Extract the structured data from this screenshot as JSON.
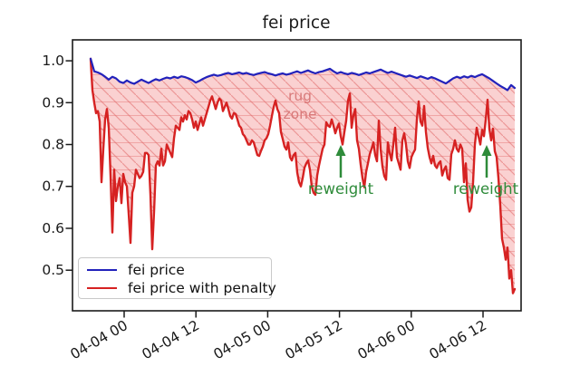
{
  "title": "fei price",
  "axes": {
    "y_ticks": [
      "1.0",
      "0.9",
      "0.8",
      "0.7",
      "0.6",
      "0.5"
    ],
    "x_ticks": [
      "04-04 00",
      "04-04 12",
      "04-05 00",
      "04-05 12",
      "04-06 00",
      "04-06 12"
    ]
  },
  "legend": {
    "items": [
      {
        "label": "fei price",
        "color": "#2222bb"
      },
      {
        "label": "fei price with penalty",
        "color": "#d62222"
      }
    ]
  },
  "annotations": {
    "rug_zone": {
      "line1": "rug",
      "line2": "zone",
      "color": "#d87a7a"
    },
    "reweights": [
      {
        "label": "reweight",
        "color": "#2e8b3a"
      },
      {
        "label": "reweight",
        "color": "#2e8b3a"
      }
    ]
  },
  "colors": {
    "blue_line": "#2222bb",
    "red_line": "#d62222",
    "fill": "#f08080",
    "hatch": "#e06666",
    "axis": "#1a1a1a",
    "green_annotation": "#2e8b3a"
  },
  "chart_data": {
    "type": "line",
    "title": "fei price",
    "x_axis": {
      "unit": "time (MM-DD HH), hours relative to 04-04 00:00",
      "tick_labels": [
        "04-04 00",
        "04-04 12",
        "04-05 00",
        "04-05 12",
        "04-06 00",
        "04-06 12"
      ],
      "tick_hours": [
        0,
        12,
        24,
        36,
        48,
        60
      ],
      "xlim_hours": [
        -8.636,
        66.364
      ]
    },
    "y_axis": {
      "tick_labels": [
        "1.0",
        "0.9",
        "0.8",
        "0.7",
        "0.6",
        "0.5"
      ],
      "tick_values": [
        1.0,
        0.9,
        0.8,
        0.7,
        0.6,
        0.5
      ],
      "ylim": [
        0.403,
        1.05
      ]
    },
    "legend": {
      "position": "lower left",
      "entries": [
        "fei price",
        "fei price with penalty"
      ]
    },
    "fill_between": {
      "label": "rug zone",
      "upper_series": "fei price",
      "lower_series": "fei price with penalty",
      "fill_color": "#f08080",
      "fill_opacity": 0.36,
      "hatch": "diagonal-and-horizontal",
      "hatch_color": "#e06666"
    },
    "annotations": [
      {
        "text": "rug zone",
        "hour": 29.2,
        "value": 0.894,
        "color": "#d87a7a"
      },
      {
        "text": "reweight",
        "hour": 36.2,
        "value": 0.7,
        "arrow_from_value": 0.715,
        "arrow_to_value": 0.79,
        "color": "#2e8b3a"
      },
      {
        "text": "reweight",
        "hour": 60.6,
        "value": 0.7,
        "arrow_from_value": 0.715,
        "arrow_to_value": 0.79,
        "color": "#2e8b3a"
      }
    ],
    "series": [
      {
        "name": "fei price",
        "color": "#2222bb",
        "x_start_hours": -5.606,
        "x_step_hours": 0.606,
        "values": [
          1.005,
          0.975,
          0.972,
          0.968,
          0.962,
          0.955,
          0.962,
          0.958,
          0.95,
          0.947,
          0.953,
          0.948,
          0.945,
          0.95,
          0.955,
          0.951,
          0.947,
          0.952,
          0.956,
          0.953,
          0.957,
          0.96,
          0.958,
          0.962,
          0.959,
          0.963,
          0.961,
          0.958,
          0.954,
          0.948,
          0.952,
          0.957,
          0.961,
          0.964,
          0.967,
          0.964,
          0.966,
          0.969,
          0.971,
          0.968,
          0.97,
          0.972,
          0.969,
          0.971,
          0.968,
          0.966,
          0.969,
          0.971,
          0.973,
          0.97,
          0.968,
          0.965,
          0.968,
          0.97,
          0.967,
          0.969,
          0.972,
          0.975,
          0.971,
          0.974,
          0.977,
          0.973,
          0.97,
          0.973,
          0.975,
          0.978,
          0.981,
          0.975,
          0.97,
          0.973,
          0.97,
          0.968,
          0.971,
          0.969,
          0.966,
          0.969,
          0.972,
          0.97,
          0.973,
          0.976,
          0.979,
          0.975,
          0.971,
          0.974,
          0.971,
          0.968,
          0.965,
          0.962,
          0.965,
          0.962,
          0.959,
          0.963,
          0.96,
          0.957,
          0.961,
          0.958,
          0.954,
          0.95,
          0.946,
          0.952,
          0.958,
          0.962,
          0.959,
          0.963,
          0.96,
          0.964,
          0.961,
          0.965,
          0.968,
          0.963,
          0.958,
          0.952,
          0.946,
          0.94,
          0.935,
          0.93,
          0.942,
          0.935
        ]
      },
      {
        "name": "fei price with penalty",
        "color": "#d62222",
        "x_start_hours": -5.606,
        "x_step_hours": 0.303,
        "values": [
          1.005,
          0.93,
          0.9,
          0.875,
          0.88,
          0.855,
          0.71,
          0.79,
          0.86,
          0.885,
          0.84,
          0.725,
          0.59,
          0.74,
          0.665,
          0.7,
          0.72,
          0.66,
          0.73,
          0.71,
          0.7,
          0.635,
          0.565,
          0.685,
          0.7,
          0.74,
          0.73,
          0.72,
          0.725,
          0.735,
          0.78,
          0.78,
          0.775,
          0.68,
          0.55,
          0.64,
          0.75,
          0.76,
          0.75,
          0.79,
          0.75,
          0.76,
          0.8,
          0.79,
          0.78,
          0.77,
          0.815,
          0.845,
          0.84,
          0.835,
          0.865,
          0.855,
          0.87,
          0.86,
          0.88,
          0.875,
          0.86,
          0.84,
          0.855,
          0.835,
          0.85,
          0.865,
          0.845,
          0.86,
          0.875,
          0.89,
          0.905,
          0.915,
          0.9,
          0.885,
          0.9,
          0.91,
          0.905,
          0.88,
          0.89,
          0.9,
          0.885,
          0.868,
          0.862,
          0.875,
          0.873,
          0.86,
          0.845,
          0.84,
          0.825,
          0.82,
          0.81,
          0.8,
          0.8,
          0.81,
          0.805,
          0.79,
          0.775,
          0.773,
          0.785,
          0.795,
          0.81,
          0.815,
          0.825,
          0.845,
          0.868,
          0.89,
          0.905,
          0.885,
          0.875,
          0.83,
          0.813,
          0.795,
          0.788,
          0.805,
          0.77,
          0.762,
          0.775,
          0.78,
          0.733,
          0.71,
          0.7,
          0.72,
          0.745,
          0.755,
          0.762,
          0.74,
          0.7,
          0.685,
          0.68,
          0.726,
          0.75,
          0.77,
          0.79,
          0.8,
          0.853,
          0.845,
          0.842,
          0.86,
          0.845,
          0.827,
          0.84,
          0.85,
          0.82,
          0.8,
          0.83,
          0.857,
          0.905,
          0.922,
          0.84,
          0.87,
          0.885,
          0.81,
          0.79,
          0.752,
          0.72,
          0.698,
          0.735,
          0.755,
          0.777,
          0.79,
          0.805,
          0.775,
          0.76,
          0.857,
          0.79,
          0.748,
          0.725,
          0.716,
          0.805,
          0.78,
          0.762,
          0.8,
          0.84,
          0.77,
          0.755,
          0.74,
          0.81,
          0.827,
          0.8,
          0.76,
          0.744,
          0.77,
          0.78,
          0.788,
          0.86,
          0.903,
          0.855,
          0.845,
          0.892,
          0.83,
          0.792,
          0.77,
          0.755,
          0.773,
          0.75,
          0.744,
          0.755,
          0.76,
          0.726,
          0.74,
          0.748,
          0.72,
          0.716,
          0.777,
          0.79,
          0.81,
          0.79,
          0.783,
          0.8,
          0.79,
          0.71,
          0.755,
          0.668,
          0.64,
          0.65,
          0.71,
          0.8,
          0.84,
          0.82,
          0.8,
          0.835,
          0.82,
          0.86,
          0.907,
          0.837,
          0.81,
          0.838,
          0.784,
          0.77,
          0.72,
          0.655,
          0.575,
          0.554,
          0.525,
          0.554,
          0.48,
          0.5,
          0.445,
          0.455
        ]
      }
    ]
  }
}
